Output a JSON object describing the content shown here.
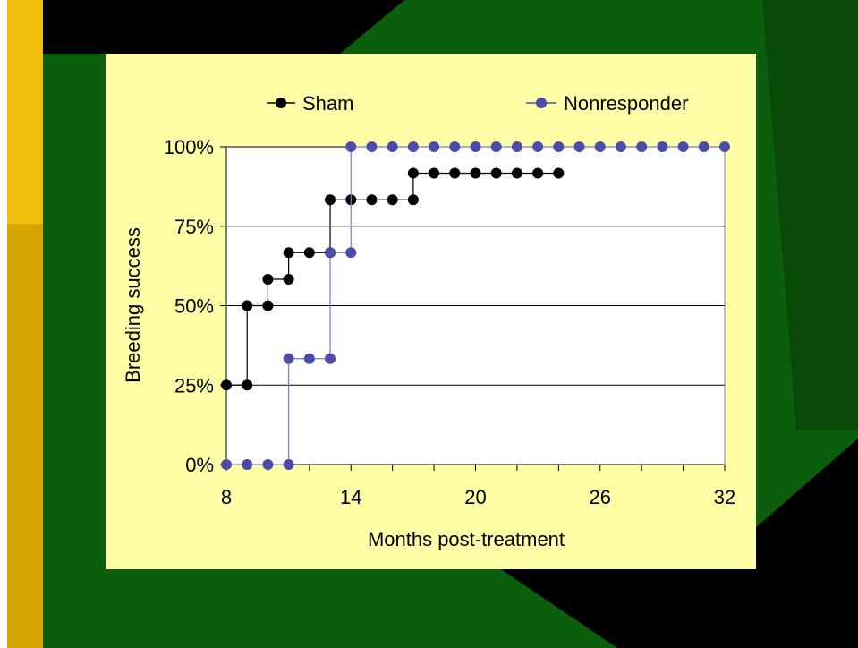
{
  "colors": {
    "panel_bg": "#FFFFA8",
    "plot_bg": "#FFFFFF",
    "slide_green": "#0B5E0B",
    "slide_gold": "#F2C00C",
    "slide_gold_dark": "#D6A600",
    "sham": "#000000",
    "nonresponder": "#4B4BAA",
    "nonresponder_line": "#7B7BC8"
  },
  "chart_data": {
    "type": "line",
    "step": true,
    "title": "",
    "xlabel": "Months post-treatment",
    "ylabel": "Breeding  success",
    "xlim": [
      8,
      32
    ],
    "ylim": [
      0,
      100
    ],
    "x_ticks": [
      "8",
      "14",
      "20",
      "26",
      "32"
    ],
    "x_tick_values": [
      8,
      14,
      20,
      26,
      32
    ],
    "y_ticks": [
      "0%",
      "25%",
      "50%",
      "75%",
      "100%"
    ],
    "y_tick_values": [
      0,
      25,
      50,
      75,
      100
    ],
    "grid": "horizontal",
    "legend_position": "top",
    "series": [
      {
        "name": "Sham",
        "color": "#000000",
        "x": [
          8,
          9,
          10,
          11,
          12,
          13,
          14,
          15,
          16,
          17,
          18,
          19,
          20,
          21,
          22,
          23,
          24
        ],
        "y": [
          25,
          50,
          58.3,
          66.7,
          66.7,
          83.3,
          83.3,
          83.3,
          83.3,
          91.7,
          91.7,
          91.7,
          91.7,
          91.7,
          91.7,
          91.7,
          91.7
        ],
        "markers": [
          [
            8,
            25
          ],
          [
            9,
            25
          ],
          [
            9,
            50
          ],
          [
            10,
            50
          ],
          [
            10,
            58.3
          ],
          [
            11,
            58.3
          ],
          [
            11,
            66.7
          ],
          [
            12,
            66.7
          ],
          [
            13,
            66.7
          ],
          [
            13,
            83.3
          ],
          [
            14,
            83.3
          ],
          [
            15,
            83.3
          ],
          [
            16,
            83.3
          ],
          [
            17,
            83.3
          ],
          [
            17,
            91.7
          ],
          [
            18,
            91.7
          ],
          [
            19,
            91.7
          ],
          [
            20,
            91.7
          ],
          [
            21,
            91.7
          ],
          [
            22,
            91.7
          ],
          [
            23,
            91.7
          ],
          [
            24,
            91.7
          ]
        ]
      },
      {
        "name": "Nonresponder",
        "color": "#4B4BAA",
        "x": [
          8,
          9,
          10,
          11,
          12,
          13,
          14,
          15,
          16,
          17,
          18,
          19,
          20,
          21,
          22,
          23,
          24,
          25,
          26,
          27,
          28,
          29,
          30,
          31,
          32
        ],
        "y": [
          0,
          0,
          0,
          33.3,
          33.3,
          66.7,
          100,
          100,
          100,
          100,
          100,
          100,
          100,
          100,
          100,
          100,
          100,
          100,
          100,
          100,
          100,
          100,
          100,
          100,
          100
        ],
        "markers": [
          [
            8,
            0
          ],
          [
            9,
            0
          ],
          [
            10,
            0
          ],
          [
            11,
            0
          ],
          [
            11,
            33.3
          ],
          [
            12,
            33.3
          ],
          [
            13,
            33.3
          ],
          [
            13,
            66.7
          ],
          [
            14,
            66.7
          ],
          [
            14,
            100
          ],
          [
            15,
            100
          ],
          [
            16,
            100
          ],
          [
            17,
            100
          ],
          [
            18,
            100
          ],
          [
            19,
            100
          ],
          [
            20,
            100
          ],
          [
            21,
            100
          ],
          [
            22,
            100
          ],
          [
            23,
            100
          ],
          [
            24,
            100
          ],
          [
            25,
            100
          ],
          [
            26,
            100
          ],
          [
            27,
            100
          ],
          [
            28,
            100
          ],
          [
            29,
            100
          ],
          [
            30,
            100
          ],
          [
            31,
            100
          ],
          [
            32,
            100
          ]
        ]
      }
    ]
  }
}
